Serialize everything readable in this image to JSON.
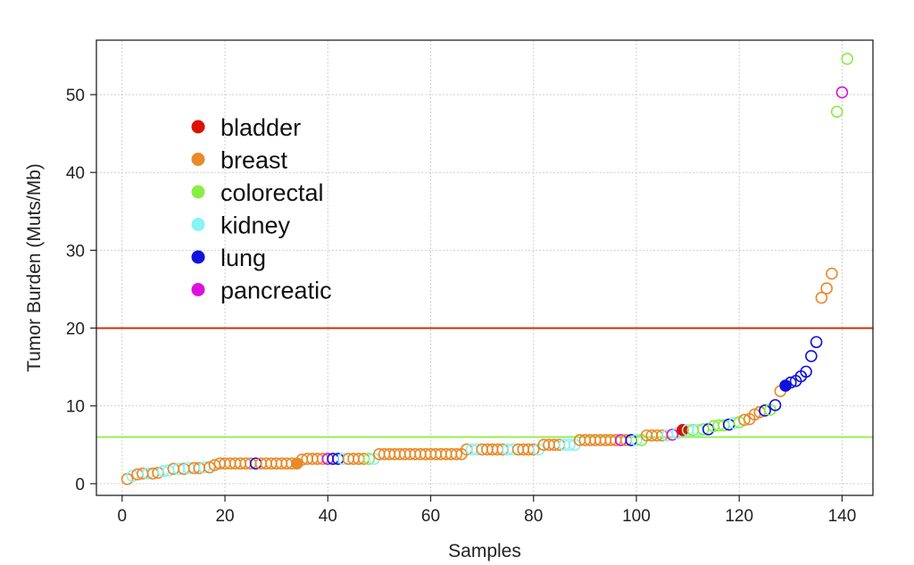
{
  "chart_data": {
    "type": "scatter",
    "title": "",
    "xlabel": "Samples",
    "ylabel": "Tumor Burden (Muts/Mb)",
    "xlim": [
      -5,
      146
    ],
    "ylim": [
      -1.5,
      57
    ],
    "xticks": [
      0,
      20,
      40,
      60,
      80,
      100,
      120,
      140
    ],
    "yticks": [
      0,
      10,
      20,
      30,
      40,
      50
    ],
    "grid": true,
    "legend_position": "upper-left",
    "colors": {
      "bladder": "#dd1100",
      "breast": "#e88a2a",
      "colorectal": "#88ee44",
      "kidney": "#88f4f4",
      "lung": "#1111dd",
      "pancreatic": "#dd11dd"
    },
    "legend": [
      {
        "key": "bladder",
        "label": "bladder"
      },
      {
        "key": "breast",
        "label": "breast"
      },
      {
        "key": "colorectal",
        "label": "colorectal"
      },
      {
        "key": "kidney",
        "label": "kidney"
      },
      {
        "key": "lung",
        "label": "lung"
      },
      {
        "key": "pancreatic",
        "label": "pancreatic"
      }
    ],
    "reference_lines": [
      {
        "y": 20,
        "color": "#cc3311"
      },
      {
        "y": 6,
        "color": "#99ee55"
      }
    ],
    "point_style": "open circles; filled circles mark highlighted samples",
    "points": [
      [
        1,
        0.6,
        "breast",
        false
      ],
      [
        2,
        1.0,
        "kidney",
        false
      ],
      [
        3,
        1.2,
        "breast",
        false
      ],
      [
        4,
        1.3,
        "breast",
        false
      ],
      [
        5,
        1.3,
        "kidney",
        false
      ],
      [
        6,
        1.3,
        "breast",
        false
      ],
      [
        7,
        1.4,
        "breast",
        false
      ],
      [
        8,
        1.6,
        "kidney",
        false
      ],
      [
        9,
        1.7,
        "kidney",
        false
      ],
      [
        10,
        1.9,
        "breast",
        false
      ],
      [
        11,
        1.9,
        "kidney",
        false
      ],
      [
        12,
        1.9,
        "breast",
        false
      ],
      [
        13,
        2.0,
        "kidney",
        false
      ],
      [
        14,
        2.0,
        "breast",
        false
      ],
      [
        15,
        2.0,
        "breast",
        false
      ],
      [
        16,
        2.1,
        "kidney",
        false
      ],
      [
        17,
        2.1,
        "breast",
        false
      ],
      [
        18,
        2.4,
        "breast",
        false
      ],
      [
        19,
        2.6,
        "breast",
        false
      ],
      [
        20,
        2.6,
        "breast",
        false
      ],
      [
        21,
        2.6,
        "breast",
        false
      ],
      [
        22,
        2.6,
        "breast",
        false
      ],
      [
        23,
        2.6,
        "breast",
        false
      ],
      [
        24,
        2.6,
        "breast",
        false
      ],
      [
        25,
        2.6,
        "breast",
        false
      ],
      [
        26,
        2.6,
        "lung",
        false
      ],
      [
        27,
        2.6,
        "breast",
        false
      ],
      [
        28,
        2.6,
        "breast",
        false
      ],
      [
        29,
        2.6,
        "breast",
        false
      ],
      [
        30,
        2.6,
        "breast",
        false
      ],
      [
        31,
        2.6,
        "breast",
        false
      ],
      [
        32,
        2.6,
        "breast",
        false
      ],
      [
        33,
        2.6,
        "breast",
        false
      ],
      [
        34,
        2.6,
        "breast",
        true
      ],
      [
        35,
        3.1,
        "breast",
        false
      ],
      [
        36,
        3.2,
        "breast",
        false
      ],
      [
        37,
        3.2,
        "breast",
        false
      ],
      [
        38,
        3.2,
        "breast",
        false
      ],
      [
        39,
        3.2,
        "breast",
        false
      ],
      [
        40,
        3.2,
        "pancreatic",
        false
      ],
      [
        41,
        3.2,
        "lung",
        false
      ],
      [
        42,
        3.2,
        "lung",
        false
      ],
      [
        43,
        3.2,
        "kidney",
        false
      ],
      [
        44,
        3.2,
        "breast",
        false
      ],
      [
        45,
        3.2,
        "breast",
        false
      ],
      [
        46,
        3.2,
        "breast",
        false
      ],
      [
        47,
        3.2,
        "breast",
        false
      ],
      [
        48,
        3.2,
        "colorectal",
        false
      ],
      [
        49,
        3.2,
        "kidney",
        false
      ],
      [
        50,
        3.8,
        "breast",
        false
      ],
      [
        51,
        3.8,
        "breast",
        false
      ],
      [
        52,
        3.8,
        "breast",
        false
      ],
      [
        53,
        3.8,
        "breast",
        false
      ],
      [
        54,
        3.8,
        "breast",
        false
      ],
      [
        55,
        3.8,
        "breast",
        false
      ],
      [
        56,
        3.8,
        "breast",
        false
      ],
      [
        57,
        3.8,
        "breast",
        false
      ],
      [
        58,
        3.8,
        "breast",
        false
      ],
      [
        59,
        3.8,
        "breast",
        false
      ],
      [
        60,
        3.8,
        "breast",
        false
      ],
      [
        61,
        3.8,
        "breast",
        false
      ],
      [
        62,
        3.8,
        "breast",
        false
      ],
      [
        63,
        3.8,
        "breast",
        false
      ],
      [
        64,
        3.8,
        "breast",
        false
      ],
      [
        65,
        3.8,
        "breast",
        false
      ],
      [
        66,
        3.8,
        "breast",
        false
      ],
      [
        67,
        4.4,
        "breast",
        false
      ],
      [
        68,
        4.4,
        "kidney",
        false
      ],
      [
        69,
        4.4,
        "kidney",
        false
      ],
      [
        70,
        4.4,
        "breast",
        false
      ],
      [
        71,
        4.4,
        "breast",
        false
      ],
      [
        72,
        4.4,
        "breast",
        false
      ],
      [
        73,
        4.4,
        "breast",
        false
      ],
      [
        74,
        4.4,
        "breast",
        false
      ],
      [
        75,
        4.4,
        "kidney",
        false
      ],
      [
        76,
        4.4,
        "kidney",
        false
      ],
      [
        77,
        4.4,
        "breast",
        false
      ],
      [
        78,
        4.4,
        "breast",
        false
      ],
      [
        79,
        4.4,
        "breast",
        false
      ],
      [
        80,
        4.4,
        "breast",
        false
      ],
      [
        81,
        4.4,
        "kidney",
        false
      ],
      [
        82,
        5.0,
        "breast",
        false
      ],
      [
        83,
        5.0,
        "breast",
        false
      ],
      [
        84,
        5.0,
        "breast",
        false
      ],
      [
        85,
        5.0,
        "breast",
        false
      ],
      [
        86,
        5.0,
        "kidney",
        false
      ],
      [
        87,
        5.0,
        "kidney",
        false
      ],
      [
        88,
        5.0,
        "kidney",
        false
      ],
      [
        89,
        5.6,
        "breast",
        false
      ],
      [
        90,
        5.6,
        "breast",
        false
      ],
      [
        91,
        5.6,
        "breast",
        false
      ],
      [
        92,
        5.6,
        "breast",
        false
      ],
      [
        93,
        5.6,
        "breast",
        false
      ],
      [
        94,
        5.6,
        "breast",
        false
      ],
      [
        95,
        5.6,
        "breast",
        false
      ],
      [
        96,
        5.6,
        "breast",
        false
      ],
      [
        97,
        5.6,
        "pancreatic",
        false
      ],
      [
        98,
        5.6,
        "breast",
        false
      ],
      [
        99,
        5.6,
        "lung",
        false
      ],
      [
        100,
        5.6,
        "kidney",
        false
      ],
      [
        101,
        5.6,
        "colorectal",
        false
      ],
      [
        102,
        6.2,
        "breast",
        false
      ],
      [
        103,
        6.2,
        "breast",
        false
      ],
      [
        104,
        6.2,
        "breast",
        false
      ],
      [
        105,
        6.2,
        "breast",
        false
      ],
      [
        106,
        6.2,
        "kidney",
        false
      ],
      [
        107,
        6.3,
        "pancreatic",
        false
      ],
      [
        108,
        6.5,
        "kidney",
        false
      ],
      [
        109,
        6.9,
        "bladder",
        true
      ],
      [
        110,
        6.9,
        "kidney",
        false
      ],
      [
        111,
        6.9,
        "colorectal",
        false
      ],
      [
        112,
        6.9,
        "kidney",
        false
      ],
      [
        113,
        7.0,
        "colorectal",
        false
      ],
      [
        114,
        7.0,
        "lung",
        false
      ],
      [
        115,
        7.4,
        "colorectal",
        false
      ],
      [
        116,
        7.5,
        "colorectal",
        false
      ],
      [
        117,
        7.5,
        "colorectal",
        false
      ],
      [
        118,
        7.6,
        "lung",
        false
      ],
      [
        119,
        7.8,
        "kidney",
        false
      ],
      [
        120,
        7.9,
        "colorectal",
        false
      ],
      [
        121,
        8.2,
        "breast",
        false
      ],
      [
        122,
        8.3,
        "breast",
        false
      ],
      [
        123,
        8.9,
        "breast",
        false
      ],
      [
        124,
        9.2,
        "breast",
        false
      ],
      [
        125,
        9.4,
        "lung",
        false
      ],
      [
        126,
        9.5,
        "colorectal",
        false
      ],
      [
        127,
        10.1,
        "lung",
        false
      ],
      [
        128,
        11.9,
        "breast",
        false
      ],
      [
        129,
        12.6,
        "lung",
        true
      ],
      [
        130,
        13.0,
        "lung",
        false
      ],
      [
        131,
        13.2,
        "lung",
        false
      ],
      [
        132,
        13.8,
        "lung",
        false
      ],
      [
        133,
        14.4,
        "lung",
        false
      ],
      [
        134,
        16.4,
        "lung",
        false
      ],
      [
        135,
        18.2,
        "lung",
        false
      ],
      [
        136,
        23.9,
        "breast",
        false
      ],
      [
        137,
        25.1,
        "breast",
        false
      ],
      [
        138,
        27.0,
        "breast",
        false
      ],
      [
        139,
        47.8,
        "colorectal",
        false
      ],
      [
        140,
        50.3,
        "pancreatic",
        false
      ],
      [
        141,
        54.6,
        "colorectal",
        false
      ]
    ]
  }
}
